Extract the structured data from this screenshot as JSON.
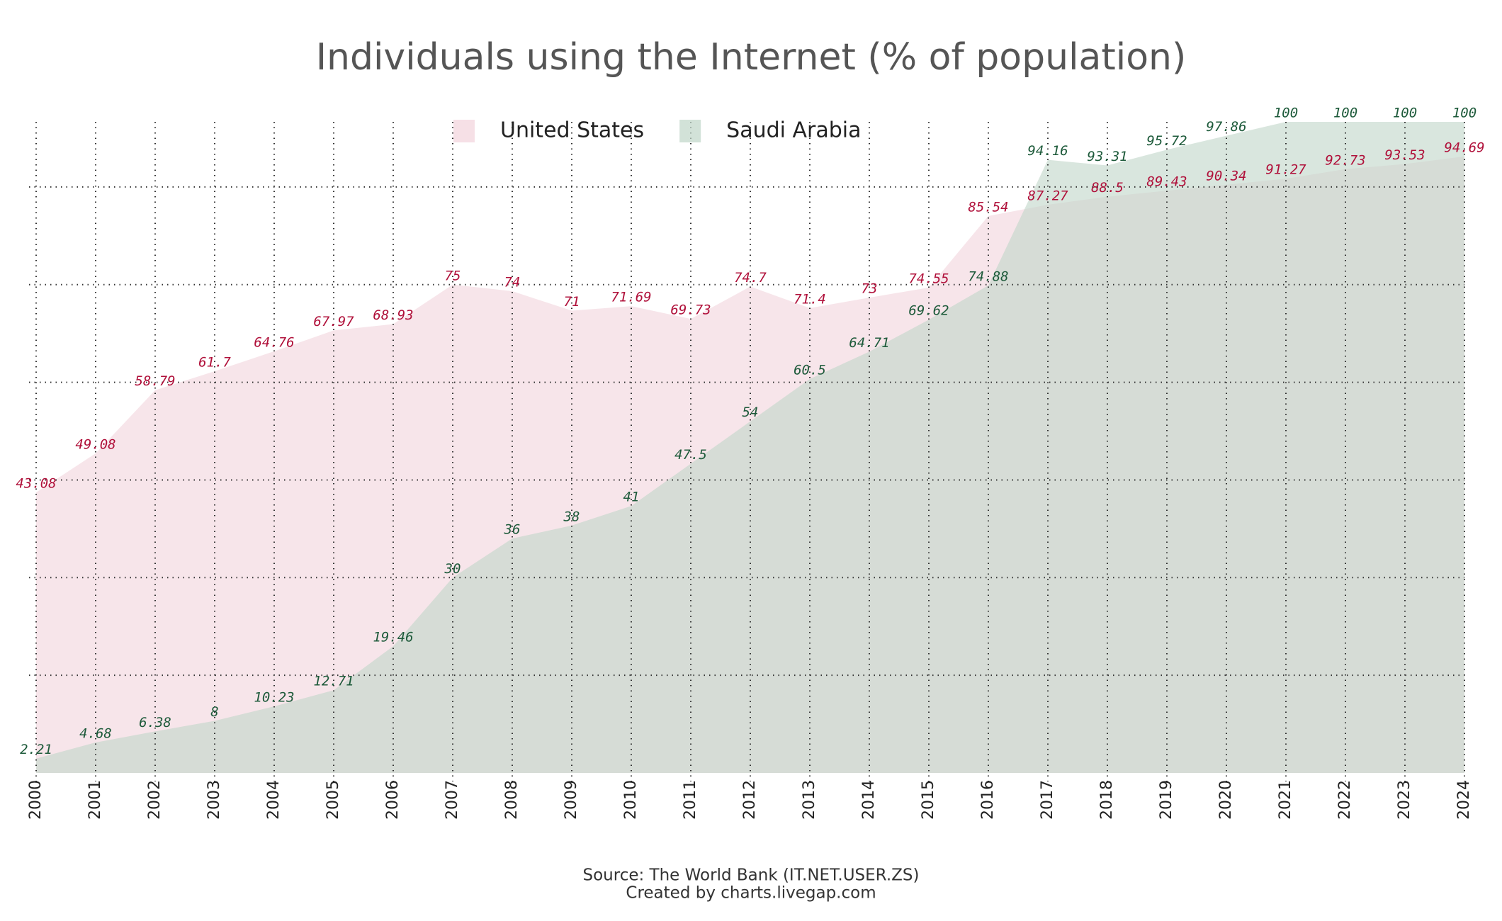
{
  "chart_data": {
    "type": "area",
    "title": "Individuals using the Internet (% of population)",
    "categories": [
      "2000",
      "2001",
      "2002",
      "2003",
      "2004",
      "2005",
      "2006",
      "2007",
      "2008",
      "2009",
      "2010",
      "2011",
      "2012",
      "2013",
      "2014",
      "2015",
      "2016",
      "2017",
      "2018",
      "2019",
      "2020",
      "2021",
      "2022",
      "2023",
      "2024"
    ],
    "series": [
      {
        "name": "United States",
        "color": "#f2d3dc",
        "label_color": "#b0103a",
        "values": [
          43.08,
          49.08,
          58.79,
          61.7,
          64.76,
          67.97,
          68.93,
          75,
          74,
          71,
          71.69,
          69.73,
          74.7,
          71.4,
          73,
          74.55,
          85.54,
          87.27,
          88.5,
          89.43,
          90.34,
          91.27,
          92.73,
          93.53,
          94.69
        ]
      },
      {
        "name": "Saudi Arabia",
        "color": "#bfd6c8",
        "label_color": "#1d5a3a",
        "values": [
          2.21,
          4.68,
          6.38,
          8,
          10.23,
          12.71,
          19.46,
          30,
          36,
          38,
          41,
          47.5,
          54,
          60.5,
          64.71,
          69.62,
          74.88,
          94.16,
          93.31,
          95.72,
          97.86,
          100,
          100,
          100,
          100
        ]
      }
    ],
    "ylim": [
      0,
      100
    ],
    "yticks": [
      0,
      15,
      30,
      45,
      60,
      75,
      90
    ],
    "grid": true,
    "legend": "top",
    "source": [
      "Source: The World Bank (IT.NET.USER.ZS)",
      "Created by charts.livegap.com"
    ]
  }
}
